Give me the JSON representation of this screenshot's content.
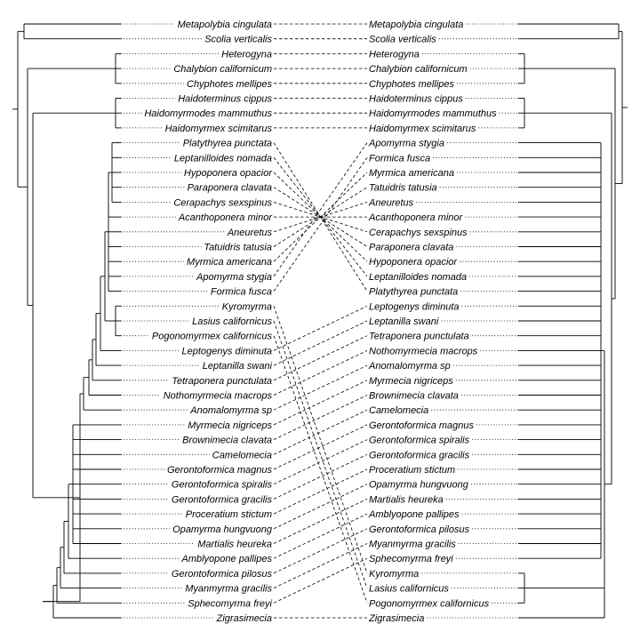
{
  "tanglegram": {
    "left_taxa": [
      "Metapolybia cingulata",
      "Scolia verticalis",
      "Heterogyna",
      "Chalybion californicum",
      "Chyphotes mellipes",
      "Haidoterminus cippus",
      "Haidomyrmodes mammuthus",
      "Haidomyrmex scimitarus",
      "Platythyrea punctata",
      "Leptanilloides nomada",
      "Hypoponera opacior",
      "Paraponera clavata",
      "Cerapachys sexspinus",
      "Acanthoponera minor",
      "Aneuretus",
      "Tatuidris tatusia",
      "Myrmica americana",
      "Apomyrma stygia",
      "Formica fusca",
      "Kyromyrma",
      "Lasius californicus",
      "Pogonomyrmex californicus",
      "Leptogenys diminuta",
      "Leptanilla swani",
      "Tetraponera punctulata",
      "Nothomyrmecia macrops",
      "Anomalomyrma sp",
      "Myrmecia nigriceps",
      "Brownimecia clavata",
      "Camelomecia",
      "Gerontoformica magnus",
      "Gerontoformica spiralis",
      "Gerontoformica gracilis",
      "Proceratium stictum",
      "Opamyrma hungvuong",
      "Martialis heureka",
      "Amblyopone pallipes",
      "Gerontoformica pilosus",
      "Myanmyrma gracilis",
      "Sphecomyrma freyi",
      "Zigrasimecia"
    ],
    "right_taxa": [
      "Metapolybia cingulata",
      "Scolia verticalis",
      "Heterogyna",
      "Chalybion californicum",
      "Chyphotes mellipes",
      "Haidoterminus cippus",
      "Haidomyrmodes mammuthus",
      "Haidomyrmex scimitarus",
      "Apomyrma stygia",
      "Formica fusca",
      "Myrmica americana",
      "Tatuidris tatusia",
      "Aneuretus",
      "Acanthoponera minor",
      "Cerapachys sexspinus",
      "Paraponera clavata",
      "Hypoponera opacior",
      "Leptanilloides nomada",
      "Platythyrea punctata",
      "Leptogenys diminuta",
      "Leptanilla swani",
      "Tetraponera punctulata",
      "Nothomyrmecia macrops",
      "Anomalomyrma sp",
      "Myrmecia nigriceps",
      "Brownimecia clavata",
      "Camelomecia",
      "Gerontoformica magnus",
      "Gerontoformica spiralis",
      "Gerontoformica gracilis",
      "Proceratium stictum",
      "Opamyrma hungvuong",
      "Martialis heureka",
      "Amblyopone pallipes",
      "Gerontoformica pilosus",
      "Myanmyrma gracilis",
      "Sphecomyrma freyi",
      "Kyromyrma",
      "Lasius californicus",
      "Pogonomyrmex californicus",
      "Zigrasimecia"
    ]
  }
}
